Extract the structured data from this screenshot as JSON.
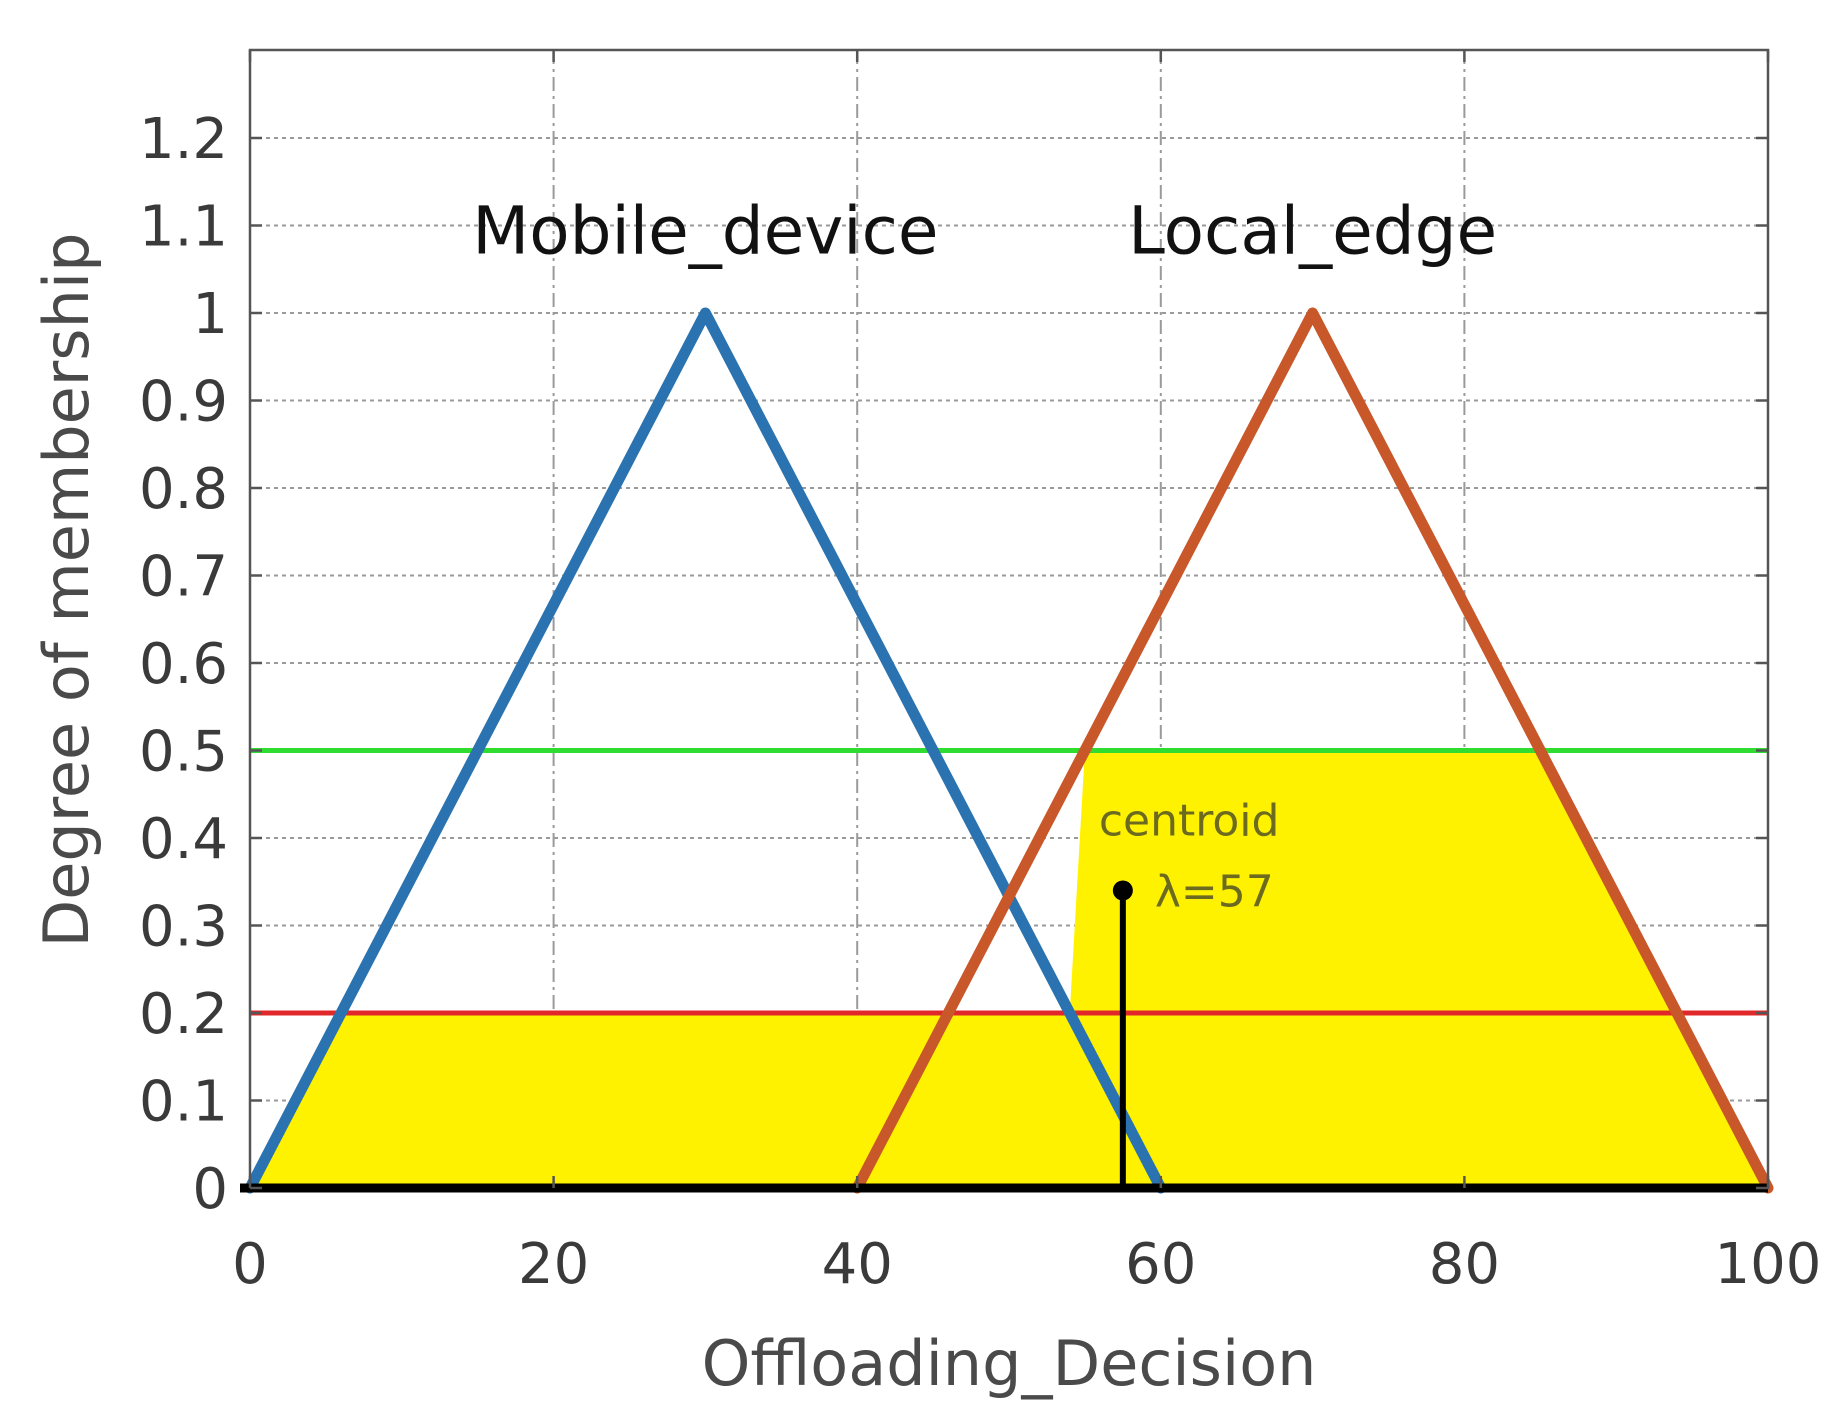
{
  "chart_data": {
    "type": "line",
    "xlabel": "Offloading_Decision",
    "ylabel": "Degree of membership",
    "xlim": [
      0,
      100
    ],
    "ylim": [
      0,
      1.2
    ],
    "x_ticks": [
      0,
      20,
      40,
      60,
      80,
      100
    ],
    "x_tick_labels": [
      "0",
      "20",
      "40",
      "60",
      "80",
      "100"
    ],
    "y_ticks": [
      0,
      0.1,
      0.2,
      0.3,
      0.4,
      0.5,
      0.6,
      0.7,
      0.8,
      0.9,
      1,
      1.1,
      1.2
    ],
    "y_tick_labels": [
      "0",
      "0.1",
      "0.2",
      "0.3",
      "0.4",
      "0.5",
      "0.6",
      "0.7",
      "0.8",
      "0.9",
      "1",
      "1.1",
      "1.2"
    ],
    "grid": true,
    "series": [
      {
        "name": "Mobile_device",
        "color": "#2a73b0",
        "x": [
          0,
          30,
          60
        ],
        "y": [
          0,
          1,
          0
        ]
      },
      {
        "name": "Local_edge",
        "color": "#c8582a",
        "x": [
          40,
          70,
          100
        ],
        "y": [
          0,
          1,
          0
        ]
      }
    ],
    "cut_lines": [
      {
        "y": 0.5,
        "color": "#2fdc2f"
      },
      {
        "y": 0.2,
        "color": "#e0282a"
      }
    ],
    "aggregated_fill": {
      "color": "#fff200",
      "polygon_x": [
        0,
        6,
        54,
        55,
        85,
        100,
        0
      ],
      "polygon_y": [
        0,
        0.2,
        0.2,
        0.5,
        0.5,
        0,
        0
      ]
    },
    "centroid": {
      "x": 57.5,
      "y": 0.34,
      "label": "centroid",
      "value_label": "λ=57"
    }
  }
}
